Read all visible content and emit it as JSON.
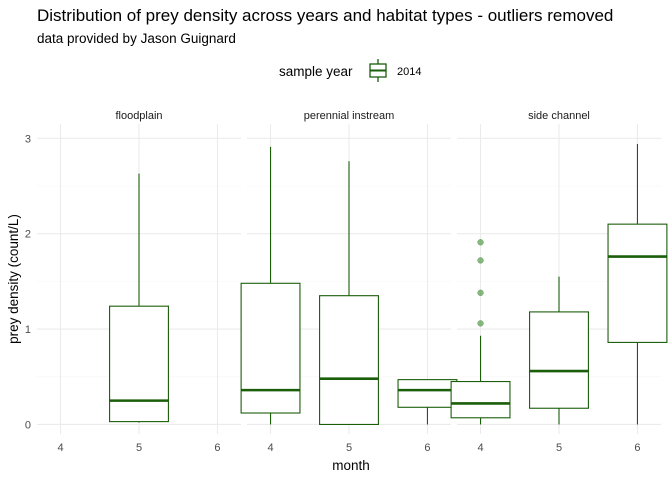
{
  "chart_data": {
    "type": "boxplot",
    "title": "Distribution of prey density across years and habitat types - outliers removed",
    "subtitle": "data provided by Jason Guignard",
    "xlabel": "month",
    "ylabel": "prey density (count/L)",
    "legend": {
      "title": "sample year",
      "entries": [
        "2014"
      ],
      "placement": "top"
    },
    "series_color": "#1a5e0a",
    "outlier_color": "#5fa055",
    "x_categories": [
      "4",
      "5",
      "6"
    ],
    "ylim": [
      -0.1,
      3.15
    ],
    "y_ticks": [
      0,
      1,
      2,
      3
    ],
    "grid": true,
    "facets": [
      {
        "name": "floodplain",
        "boxes": [
          {
            "month": "5",
            "min": 0.02,
            "q1": 0.03,
            "median": 0.25,
            "q3": 1.24,
            "max": 2.63,
            "outliers": []
          }
        ]
      },
      {
        "name": "perennial instream",
        "boxes": [
          {
            "month": "4",
            "min": 0.0,
            "q1": 0.12,
            "median": 0.36,
            "q3": 1.48,
            "max": 2.91,
            "outliers": []
          },
          {
            "month": "5",
            "min": 0.0,
            "q1": 0.0,
            "median": 0.48,
            "q3": 1.35,
            "max": 2.76,
            "outliers": []
          },
          {
            "month": "6",
            "min": 0.0,
            "q1": 0.18,
            "median": 0.36,
            "q3": 0.47,
            "max": 0.47,
            "outliers": []
          }
        ]
      },
      {
        "name": "side channel",
        "boxes": [
          {
            "month": "4",
            "min": 0.0,
            "q1": 0.07,
            "median": 0.22,
            "q3": 0.45,
            "max": 0.93,
            "outliers": [
              1.06,
              1.38,
              1.72,
              1.91
            ]
          },
          {
            "month": "5",
            "min": 0.0,
            "q1": 0.17,
            "median": 0.56,
            "q3": 1.18,
            "max": 1.55,
            "outliers": []
          },
          {
            "month": "6",
            "min": 0.0,
            "q1": 0.86,
            "median": 1.76,
            "q3": 2.1,
            "max": 2.94,
            "outliers": []
          }
        ]
      }
    ]
  }
}
